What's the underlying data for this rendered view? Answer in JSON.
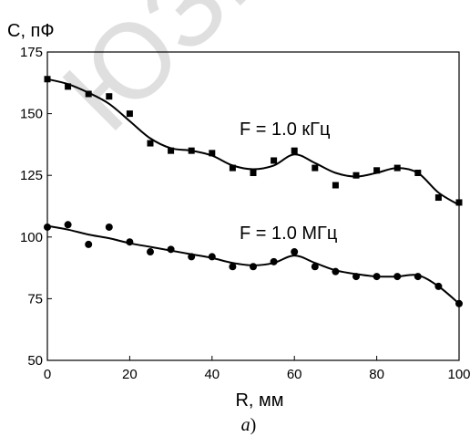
{
  "chart_data": {
    "type": "scatter",
    "ylabel": "C, пФ",
    "xlabel": "R, мм",
    "caption_letter": "а",
    "caption_paren": ")",
    "xlim": [
      0,
      100
    ],
    "ylim": [
      50,
      175
    ],
    "xticks": [
      "0",
      "20",
      "40",
      "60",
      "80",
      "100"
    ],
    "yticks": [
      "50",
      "75",
      "100",
      "125",
      "150",
      "175"
    ],
    "grid": false,
    "series": [
      {
        "name": "F = 1.0 кГц",
        "marker": "square",
        "x": [
          0,
          5,
          10,
          15,
          20,
          25,
          30,
          35,
          40,
          45,
          50,
          55,
          60,
          65,
          70,
          75,
          80,
          85,
          90,
          95,
          100
        ],
        "y": [
          164,
          161,
          158,
          157,
          150,
          138,
          135,
          135,
          134,
          128,
          126,
          131,
          135,
          128,
          121,
          125,
          127,
          128,
          126,
          116,
          114
        ],
        "fit": [
          [
            0,
            164
          ],
          [
            5,
            162
          ],
          [
            10,
            158.5
          ],
          [
            15,
            154
          ],
          [
            20,
            147
          ],
          [
            25,
            140
          ],
          [
            30,
            136
          ],
          [
            35,
            135
          ],
          [
            40,
            133
          ],
          [
            45,
            129
          ],
          [
            50,
            127.5
          ],
          [
            55,
            129
          ],
          [
            60,
            133.5
          ],
          [
            65,
            130
          ],
          [
            70,
            126
          ],
          [
            75,
            124.5
          ],
          [
            80,
            126
          ],
          [
            85,
            128
          ],
          [
            90,
            126
          ],
          [
            95,
            118
          ],
          [
            100,
            113
          ]
        ]
      },
      {
        "name": "F = 1.0 МГц",
        "marker": "circle",
        "x": [
          0,
          5,
          10,
          15,
          20,
          25,
          30,
          35,
          40,
          45,
          50,
          55,
          60,
          65,
          70,
          75,
          80,
          85,
          90,
          95,
          100
        ],
        "y": [
          104,
          105,
          97,
          104,
          98,
          94,
          95,
          92,
          92,
          88,
          88,
          90,
          94,
          88,
          86,
          84,
          84,
          84,
          84,
          80,
          73
        ],
        "fit": [
          [
            0,
            104.5
          ],
          [
            5,
            103
          ],
          [
            10,
            101
          ],
          [
            15,
            99.5
          ],
          [
            20,
            97.5
          ],
          [
            25,
            96
          ],
          [
            30,
            94.5
          ],
          [
            35,
            93
          ],
          [
            40,
            91.5
          ],
          [
            45,
            89.5
          ],
          [
            50,
            88.5
          ],
          [
            55,
            89.5
          ],
          [
            60,
            92.5
          ],
          [
            65,
            89.5
          ],
          [
            70,
            86.5
          ],
          [
            75,
            85
          ],
          [
            80,
            84
          ],
          [
            85,
            84
          ],
          [
            90,
            84.5
          ],
          [
            95,
            80
          ],
          [
            100,
            73
          ]
        ]
      }
    ]
  }
}
